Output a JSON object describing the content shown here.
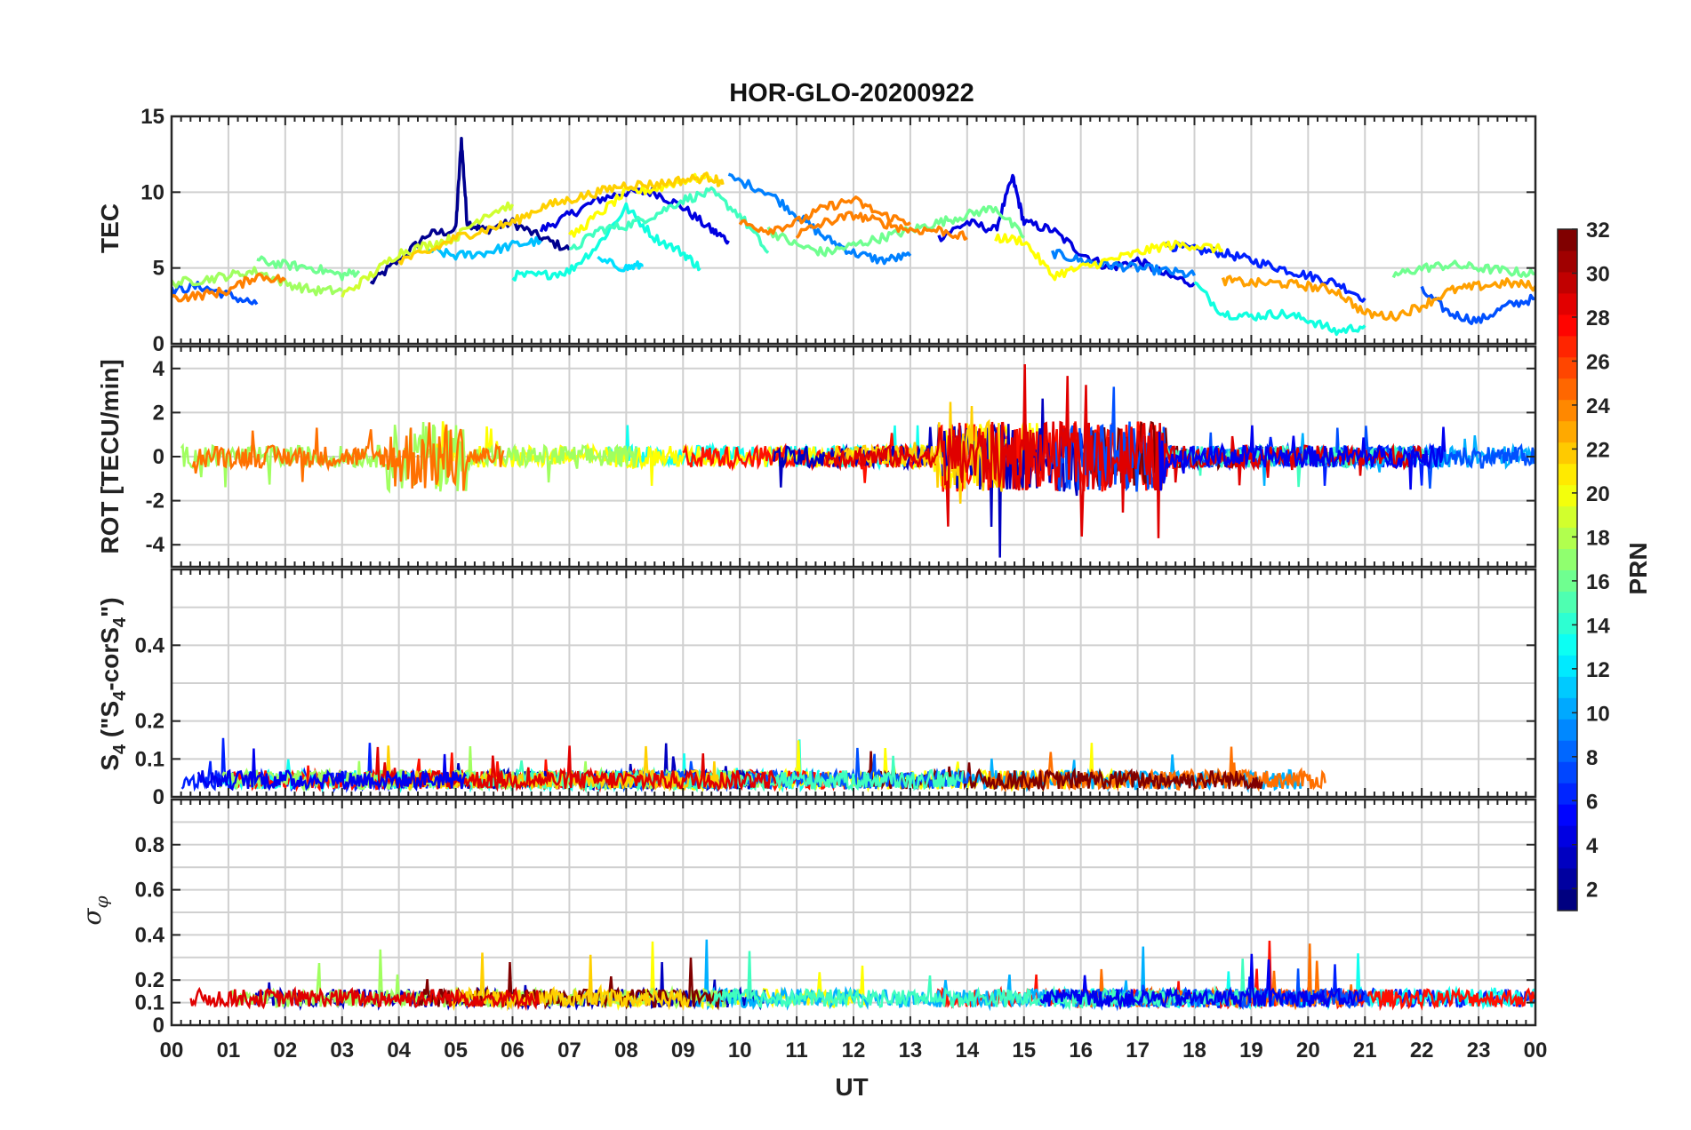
{
  "title": "HOR-GLO-20200922",
  "colors": {
    "grid": "#d0d0d0",
    "axis": "#262626",
    "background": "#ffffff"
  },
  "chart_data": {
    "type": "line",
    "title": "HOR-GLO-20200922",
    "xlabel": "UT",
    "xlim": [
      0,
      24
    ],
    "x_tick_labels": [
      "00",
      "01",
      "02",
      "03",
      "04",
      "05",
      "06",
      "07",
      "08",
      "09",
      "10",
      "11",
      "12",
      "13",
      "14",
      "15",
      "16",
      "17",
      "18",
      "19",
      "20",
      "21",
      "22",
      "23",
      "00"
    ],
    "grid": true,
    "colorbar": {
      "label": "PRN",
      "range": [
        1,
        32
      ],
      "tick_labels": [
        "2",
        "4",
        "6",
        "8",
        "10",
        "12",
        "14",
        "16",
        "18",
        "20",
        "22",
        "24",
        "26",
        "28",
        "30",
        "32"
      ],
      "colormap": "jet",
      "placement": "right"
    },
    "panels": [
      {
        "id": "tec",
        "ylabel": "TEC",
        "ylim": [
          0,
          15
        ],
        "y_tick_labels": [
          "0",
          "5",
          "10",
          "15"
        ],
        "series": [
          {
            "color": "#00008f",
            "x": [
              3.5,
              4.0,
              4.5,
              5.0,
              5.1,
              5.2,
              5.5,
              6.0,
              6.5,
              7.0
            ],
            "y": [
              4.0,
              5.5,
              7.2,
              7.5,
              13.5,
              8.0,
              7.5,
              8.0,
              7.0,
              6.2
            ]
          },
          {
            "color": "#0000e0",
            "x": [
              6.5,
              7.0,
              7.5,
              8.0,
              8.5,
              9.0,
              9.5,
              9.8
            ],
            "y": [
              7.5,
              8.5,
              9.5,
              10.0,
              10.0,
              9.0,
              7.5,
              6.8
            ]
          },
          {
            "color": "#0000e0",
            "x": [
              13.5,
              14.0,
              14.5,
              14.8,
              15.0,
              15.5,
              16.0,
              16.5,
              17.0,
              17.5,
              18.0
            ],
            "y": [
              7.0,
              8.0,
              7.5,
              11.0,
              8.0,
              7.5,
              6.0,
              5.0,
              5.5,
              4.5,
              4.0
            ]
          },
          {
            "color": "#0020ff",
            "x": [
              17.5,
              18.0,
              18.5,
              19.0,
              19.5,
              20.0,
              20.5,
              21.0
            ],
            "y": [
              6.5,
              6.2,
              6.0,
              5.5,
              5.0,
              4.5,
              4.0,
              3.0
            ]
          },
          {
            "color": "#0050ff",
            "x": [
              0.0,
              0.5,
              1.0,
              1.5
            ],
            "y": [
              3.5,
              3.8,
              3.2,
              2.6
            ]
          },
          {
            "color": "#0050ff",
            "x": [
              22.0,
              22.5,
              23.0,
              23.5,
              24.0
            ],
            "y": [
              3.5,
              2.0,
              1.5,
              2.5,
              3.0
            ]
          },
          {
            "color": "#0080ff",
            "x": [
              9.8,
              10.5,
              11.0,
              11.5,
              12.0,
              12.5,
              13.0
            ],
            "y": [
              11.0,
              10.0,
              8.5,
              7.0,
              6.0,
              5.5,
              5.8
            ]
          },
          {
            "color": "#0080ff",
            "x": [
              15.5,
              16.0,
              16.5,
              17.0,
              17.5,
              18.0
            ],
            "y": [
              6.0,
              5.5,
              5.2,
              5.0,
              4.8,
              4.5
            ]
          },
          {
            "color": "#00c0ff",
            "x": [
              4.5,
              5.0,
              5.5,
              6.0,
              6.5
            ],
            "y": [
              6.2,
              5.8,
              6.0,
              6.5,
              6.8
            ]
          },
          {
            "color": "#00e0ff",
            "x": [
              7.5,
              8.0,
              8.3
            ],
            "y": [
              5.5,
              5.0,
              5.2
            ]
          },
          {
            "color": "#10ffe0",
            "x": [
              6.0,
              6.5,
              7.0,
              7.5,
              8.0,
              8.5,
              9.0,
              9.3
            ],
            "y": [
              4.5,
              4.5,
              4.8,
              6.5,
              9.0,
              7.0,
              6.0,
              5.0
            ]
          },
          {
            "color": "#10ffe0",
            "x": [
              18.0,
              18.5,
              19.0,
              19.5,
              20.0,
              20.5,
              21.0
            ],
            "y": [
              4.0,
              2.0,
              1.8,
              2.0,
              1.6,
              0.8,
              1.2
            ]
          },
          {
            "color": "#40ffc0",
            "x": [
              7.0,
              7.5,
              8.0,
              8.5,
              9.0,
              9.5,
              10.0,
              10.5
            ],
            "y": [
              6.0,
              7.5,
              7.8,
              8.5,
              9.5,
              10.0,
              8.5,
              6.0
            ]
          },
          {
            "color": "#70ff90",
            "x": [
              1.5,
              2.0,
              2.5,
              3.0,
              3.3
            ],
            "y": [
              5.5,
              5.2,
              5.0,
              4.5,
              4.8
            ]
          },
          {
            "color": "#70ff90",
            "x": [
              10.5,
              11.0,
              11.5,
              12.0,
              12.5,
              13.0,
              13.5,
              14.0,
              14.5,
              15.0
            ],
            "y": [
              7.5,
              6.5,
              6.0,
              6.5,
              7.0,
              7.5,
              8.0,
              8.5,
              9.0,
              7.0
            ]
          },
          {
            "color": "#70ff90",
            "x": [
              21.5,
              22.0,
              22.5,
              23.0,
              23.5,
              24.0
            ],
            "y": [
              4.5,
              5.0,
              5.2,
              5.0,
              4.8,
              4.6
            ]
          },
          {
            "color": "#a0ff60",
            "x": [
              0.0,
              0.5,
              1.0,
              1.5,
              2.0,
              2.5,
              3.0
            ],
            "y": [
              4.0,
              4.2,
              4.5,
              4.8,
              4.0,
              3.5,
              3.5
            ]
          },
          {
            "color": "#d0ff30",
            "x": [
              3.0,
              3.5,
              4.0,
              4.5,
              5.0,
              5.5,
              6.0
            ],
            "y": [
              3.2,
              4.5,
              6.0,
              6.5,
              7.0,
              8.5,
              9.2
            ]
          },
          {
            "color": "#ffff00",
            "x": [
              7.0,
              7.5,
              8.0,
              8.5,
              9.0,
              9.5
            ],
            "y": [
              7.0,
              8.5,
              10.0,
              10.2,
              10.8,
              11.0
            ]
          },
          {
            "color": "#ffff00",
            "x": [
              14.5,
              15.0,
              15.5,
              16.0,
              16.5,
              17.0,
              17.5,
              18.0,
              18.5
            ],
            "y": [
              7.0,
              6.8,
              4.5,
              5.0,
              5.5,
              6.0,
              6.5,
              6.5,
              6.2
            ]
          },
          {
            "color": "#ffd000",
            "x": [
              4.0,
              4.5,
              5.0,
              5.5,
              6.0,
              6.5,
              7.0,
              7.5,
              8.0,
              8.5,
              9.0,
              9.5,
              9.7
            ],
            "y": [
              5.5,
              6.0,
              7.0,
              7.5,
              8.0,
              9.0,
              9.5,
              10.0,
              10.5,
              10.5,
              10.8,
              11.0,
              10.5
            ]
          },
          {
            "color": "#ffa000",
            "x": [
              18.5,
              19.0,
              19.5,
              20.0,
              20.5,
              21.0,
              21.5,
              22.0,
              22.5,
              23.0,
              23.5,
              24.0
            ],
            "y": [
              4.2,
              4.0,
              4.0,
              3.8,
              3.5,
              2.0,
              1.8,
              2.5,
              3.5,
              3.8,
              4.0,
              3.8
            ]
          },
          {
            "color": "#ff8000",
            "x": [
              0.0,
              0.5,
              1.0,
              1.5,
              2.0
            ],
            "y": [
              3.0,
              3.2,
              3.5,
              4.5,
              4.2
            ]
          },
          {
            "color": "#ff8000",
            "x": [
              10.0,
              10.5,
              11.0,
              11.5,
              12.0,
              12.5,
              13.0
            ],
            "y": [
              8.0,
              7.5,
              8.0,
              9.0,
              9.5,
              8.5,
              8.0
            ]
          },
          {
            "color": "#ff8000",
            "x": [
              11.0,
              11.5,
              12.0,
              12.5,
              13.0,
              13.5,
              14.0
            ],
            "y": [
              7.2,
              8.0,
              8.5,
              8.0,
              7.5,
              7.5,
              7.0
            ]
          }
        ]
      },
      {
        "id": "rot",
        "ylabel": "ROT [TECU/min]",
        "ylim": [
          -5,
          5
        ],
        "y_tick_labels": [
          "-4",
          "-2",
          "0",
          "2",
          "4"
        ]
      },
      {
        "id": "s4",
        "ylabel": "S4 (\"S4-corS4\")",
        "ylim": [
          0,
          0.6
        ],
        "y_tick_labels": [
          "0",
          "0.1",
          "0.2",
          "0.4"
        ]
      },
      {
        "id": "sigma",
        "ylabel": "σφ",
        "ylim": [
          0,
          1
        ],
        "y_tick_labels": [
          "0",
          "0.1",
          "0.2",
          "0.4",
          "0.6",
          "0.8"
        ]
      }
    ]
  }
}
